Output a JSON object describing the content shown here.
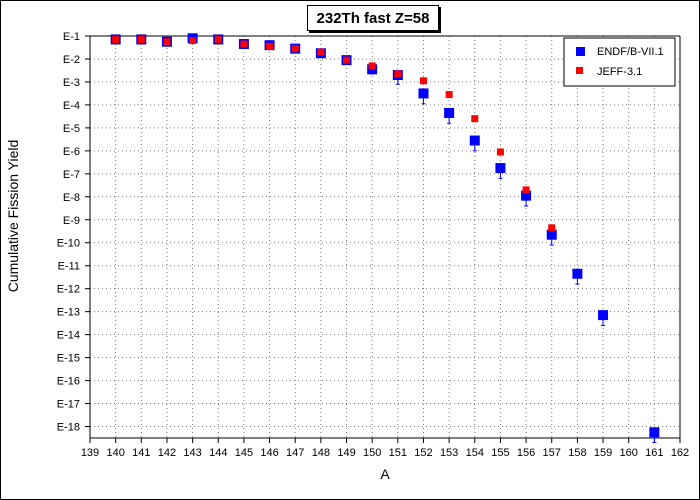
{
  "chart_data": {
    "type": "scatter",
    "title": "232Th fast Z=58",
    "xlabel": "A",
    "ylabel": "Cumulative Fission Yield",
    "xlim": [
      139,
      162
    ],
    "ylim_exponent": [
      -18.5,
      -1
    ],
    "y_scale": "log",
    "grid": true,
    "legend_position": "top-right",
    "x_tick_labels": [
      "139",
      "140",
      "141",
      "142",
      "143",
      "144",
      "145",
      "146",
      "147",
      "148",
      "149",
      "150",
      "151",
      "152",
      "153",
      "154",
      "155",
      "156",
      "157",
      "158",
      "159",
      "160",
      "161",
      "162"
    ],
    "y_tick_labels": [
      "E-1",
      "E-2",
      "E-3",
      "E-4",
      "E-5",
      "E-6",
      "E-7",
      "E-8",
      "E-9",
      "E-10",
      "E-11",
      "E-12",
      "E-13",
      "E-14",
      "E-15",
      "E-16",
      "E-17",
      "E-18"
    ],
    "series": [
      {
        "name": "ENDF/B-VII.1",
        "color": "#0000ff",
        "marker": "square",
        "points": [
          {
            "x": 140,
            "log10y": -1.15,
            "err": 0.05
          },
          {
            "x": 141,
            "log10y": -1.15,
            "err": 0.05
          },
          {
            "x": 142,
            "log10y": -1.25,
            "err": 0.05
          },
          {
            "x": 143,
            "log10y": -1.1,
            "err": 0.05
          },
          {
            "x": 144,
            "log10y": -1.15,
            "err": 0.05
          },
          {
            "x": 145,
            "log10y": -1.35,
            "err": 0.05
          },
          {
            "x": 146,
            "log10y": -1.4,
            "err": 0.05
          },
          {
            "x": 147,
            "log10y": -1.55,
            "err": 0.05
          },
          {
            "x": 148,
            "log10y": -1.75,
            "err": 0.05
          },
          {
            "x": 149,
            "log10y": -2.05,
            "err": 0.05
          },
          {
            "x": 150,
            "log10y": -2.45,
            "err": 0.2
          },
          {
            "x": 151,
            "log10y": -2.7,
            "err": 0.4
          },
          {
            "x": 152,
            "log10y": -3.5,
            "err": 0.45
          },
          {
            "x": 153,
            "log10y": -4.35,
            "err": 0.45
          },
          {
            "x": 154,
            "log10y": -5.55,
            "err": 0.45
          },
          {
            "x": 155,
            "log10y": -6.75,
            "err": 0.45
          },
          {
            "x": 156,
            "log10y": -7.95,
            "err": 0.45
          },
          {
            "x": 157,
            "log10y": -9.65,
            "err": 0.45
          },
          {
            "x": 158,
            "log10y": -11.35,
            "err": 0.45
          },
          {
            "x": 159,
            "log10y": -13.15,
            "err": 0.45
          },
          {
            "x": 161,
            "log10y": -18.25,
            "err": 0.45
          }
        ]
      },
      {
        "name": "JEFF-3.1",
        "color": "#ff0000",
        "marker": "square",
        "points": [
          {
            "x": 140,
            "log10y": -1.15
          },
          {
            "x": 141,
            "log10y": -1.15
          },
          {
            "x": 142,
            "log10y": -1.25
          },
          {
            "x": 143,
            "log10y": -1.2
          },
          {
            "x": 144,
            "log10y": -1.15
          },
          {
            "x": 145,
            "log10y": -1.35
          },
          {
            "x": 146,
            "log10y": -1.45
          },
          {
            "x": 147,
            "log10y": -1.55
          },
          {
            "x": 148,
            "log10y": -1.7
          },
          {
            "x": 149,
            "log10y": -2.05
          },
          {
            "x": 150,
            "log10y": -2.3
          },
          {
            "x": 151,
            "log10y": -2.65
          },
          {
            "x": 152,
            "log10y": -2.95
          },
          {
            "x": 153,
            "log10y": -3.55
          },
          {
            "x": 154,
            "log10y": -4.6
          },
          {
            "x": 155,
            "log10y": -6.05
          },
          {
            "x": 156,
            "log10y": -7.7
          },
          {
            "x": 157,
            "log10y": -9.35
          }
        ]
      }
    ]
  }
}
